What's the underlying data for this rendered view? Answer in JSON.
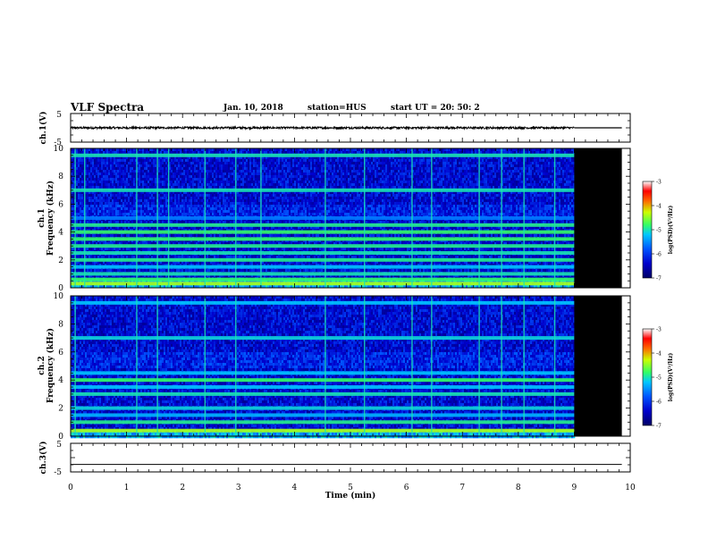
{
  "header": {
    "title": "VLF Spectra",
    "date": "Jan. 10, 2018",
    "station": "station=HUS",
    "start": "start  UT  =   20: 50: 2"
  },
  "colors": {
    "background": "#ffffff",
    "axis": "#000000",
    "no_data": "#000000",
    "colormap": [
      "#000066",
      "#0000cc",
      "#0055ff",
      "#00c8ff",
      "#33ff66",
      "#ccff00",
      "#ff6600",
      "#ff0000",
      "#ffffff"
    ]
  },
  "chart_data": [
    {
      "type": "line",
      "panel": "ch1-waveform",
      "ylabel": "ch.1(V)",
      "ylim": [
        -5,
        5
      ],
      "yticks": [
        "5",
        "-5"
      ],
      "xlim": [
        0,
        10
      ],
      "data_end_min": 9.0,
      "series": [
        {
          "x": [
            0,
            9.0,
            9.0,
            9.85
          ],
          "y": [
            0,
            0,
            0,
            0
          ]
        }
      ],
      "noise_amplitude_v": 0.35
    },
    {
      "type": "heatmap",
      "panel": "ch1-spectrogram",
      "ylabel_line1": "ch.1",
      "ylabel_line2": "Frequency (kHz)",
      "ylim": [
        0,
        10
      ],
      "yticks": [
        "0",
        "2",
        "4",
        "6",
        "8",
        "10"
      ],
      "xlim": [
        0,
        10
      ],
      "data_end_min": 9.0,
      "colorbar": {
        "label": "log(PSD)(V²/Hz)",
        "range": [
          -7,
          -3
        ],
        "ticks": [
          "-3",
          "-4",
          "-5",
          "-6",
          "-7"
        ]
      },
      "bands_khz": [
        {
          "f": 0.3,
          "level": -4.4
        },
        {
          "f": 0.6,
          "level": -4.8
        },
        {
          "f": 1.0,
          "level": -5.0
        },
        {
          "f": 1.5,
          "level": -5.2
        },
        {
          "f": 2.0,
          "level": -4.9
        },
        {
          "f": 2.5,
          "level": -5.0
        },
        {
          "f": 3.0,
          "level": -4.9
        },
        {
          "f": 3.5,
          "level": -4.8
        },
        {
          "f": 4.0,
          "level": -4.8
        },
        {
          "f": 4.5,
          "level": -4.9
        },
        {
          "f": 5.0,
          "level": -5.6
        },
        {
          "f": 7.0,
          "level": -5.0
        },
        {
          "f": 9.5,
          "level": -5.0
        }
      ],
      "sferic_times_min": [
        0.08,
        0.25,
        1.18,
        1.55,
        1.75,
        2.4,
        2.95,
        3.4,
        4.55,
        5.25,
        6.1,
        6.45,
        7.3,
        7.7,
        8.1,
        8.65
      ]
    },
    {
      "type": "heatmap",
      "panel": "ch2-spectrogram",
      "ylabel_line1": "ch.2",
      "ylabel_line2": "Frequency (kHz)",
      "ylim": [
        0,
        10
      ],
      "yticks": [
        "0",
        "2",
        "4",
        "6",
        "8",
        "10"
      ],
      "xlim": [
        0,
        10
      ],
      "data_end_min": 9.0,
      "colorbar": {
        "label": "log(PSD)(V²/Hz)",
        "range": [
          -7,
          -3
        ],
        "ticks": [
          "-3",
          "-4",
          "-5",
          "-6",
          "-7"
        ]
      },
      "bands_khz": [
        {
          "f": 0.4,
          "level": -4.4
        },
        {
          "f": 1.0,
          "level": -4.9
        },
        {
          "f": 1.5,
          "level": -5.3
        },
        {
          "f": 2.0,
          "level": -5.1
        },
        {
          "f": 3.0,
          "level": -5.0
        },
        {
          "f": 3.5,
          "level": -5.2
        },
        {
          "f": 4.0,
          "level": -4.8
        },
        {
          "f": 4.5,
          "level": -5.2
        },
        {
          "f": 7.0,
          "level": -5.1
        },
        {
          "f": 9.5,
          "level": -5.2
        }
      ],
      "sferic_times_min": [
        0.08,
        1.18,
        1.55,
        2.4,
        2.95,
        4.55,
        5.25,
        6.1,
        6.45,
        7.3,
        7.7,
        8.1,
        8.65
      ]
    },
    {
      "type": "line",
      "panel": "ch3-waveform",
      "ylabel": "ch.3(V)",
      "ylim": [
        -5,
        5
      ],
      "yticks": [
        "5",
        "-5"
      ],
      "xlim": [
        0,
        10
      ],
      "xlabel": "Time  (min)",
      "xticks": [
        "0",
        "1",
        "2",
        "3",
        "4",
        "5",
        "6",
        "7",
        "8",
        "9",
        "10"
      ],
      "series": [
        {
          "x": [
            0,
            9.85
          ],
          "y": [
            -2.4,
            -2.4
          ]
        }
      ]
    }
  ]
}
